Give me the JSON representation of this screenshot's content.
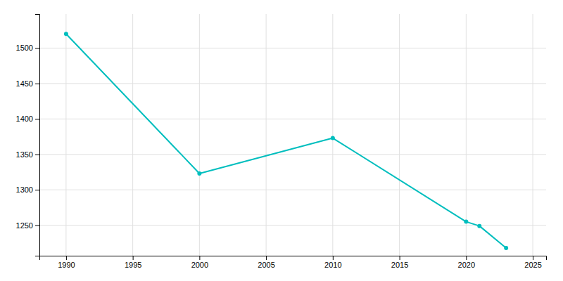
{
  "chart_data": {
    "type": "line",
    "x": [
      1990,
      2000,
      2010,
      2020,
      2021,
      2023
    ],
    "values": [
      1520,
      1323,
      1373,
      1255,
      1249,
      1218
    ],
    "color": "#00BEBE",
    "marker": "circle",
    "xlim": [
      1988,
      2026
    ],
    "ylim": [
      1207,
      1548
    ],
    "xticks": [
      1990,
      1995,
      2000,
      2005,
      2010,
      2015,
      2020,
      2025
    ],
    "yticks": [
      1250,
      1300,
      1350,
      1400,
      1450,
      1500
    ],
    "grid": true
  }
}
